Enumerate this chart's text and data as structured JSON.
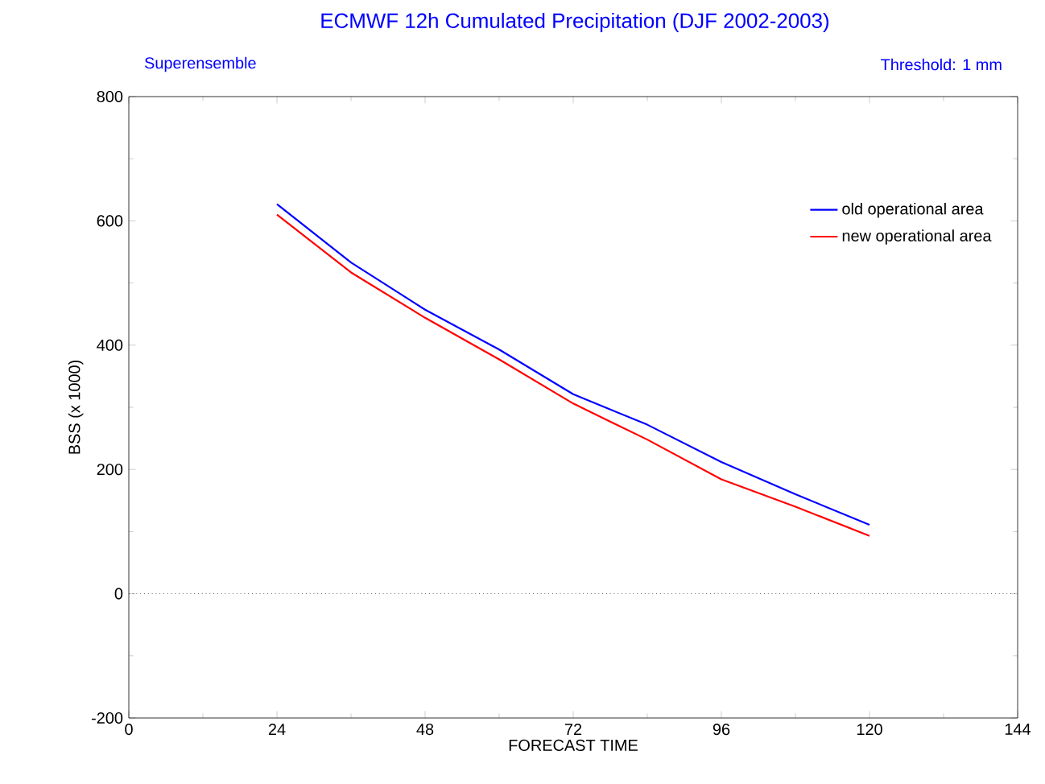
{
  "chart_data": {
    "type": "line",
    "title": "ECMWF 12h Cumulated Precipitation  (DJF 2002-2003)",
    "subtitle": "Superensemble",
    "annotations": [
      "Threshold: 1 mm"
    ],
    "xlabel": "FORECAST TIME",
    "ylabel": "BSS (x 1000)",
    "x": [
      24,
      36,
      48,
      60,
      72,
      84,
      96,
      108,
      120
    ],
    "series": [
      {
        "name": "old operational area",
        "color": "#0000ff",
        "values": [
          627,
          533,
          457,
          393,
          321,
          272,
          212,
          160,
          111
        ]
      },
      {
        "name": "new operational area",
        "color": "#ff0000",
        "values": [
          610,
          517,
          444,
          377,
          306,
          248,
          184,
          140,
          93
        ]
      }
    ],
    "xlim": [
      0,
      144
    ],
    "xticks": [
      0,
      24,
      48,
      72,
      96,
      120,
      144
    ],
    "ylim": [
      -200,
      800
    ],
    "yticks": [
      -200,
      0,
      200,
      400,
      600,
      800
    ],
    "ref_lines": [
      {
        "axis": "y",
        "value": 0,
        "line_style": "dotted"
      }
    ],
    "legend": "top right",
    "grid": false,
    "marker": "none",
    "line_style": "solid"
  }
}
